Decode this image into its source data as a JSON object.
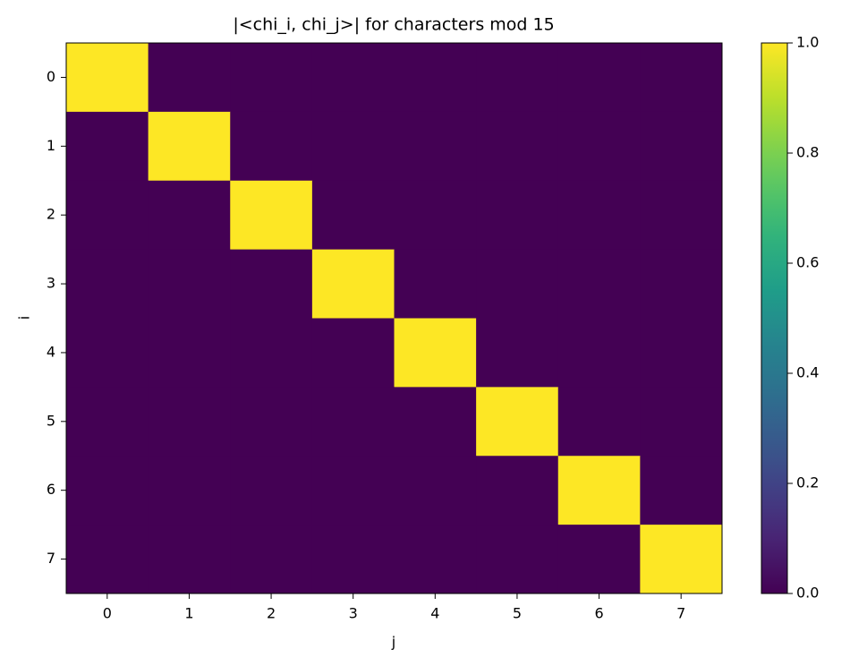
{
  "chart_data": {
    "type": "heatmap",
    "title": "|<chi_i, chi_j>| for characters mod 15",
    "xlabel": "j",
    "ylabel": "i",
    "x": [
      0,
      1,
      2,
      3,
      4,
      5,
      6,
      7
    ],
    "y": [
      0,
      1,
      2,
      3,
      4,
      5,
      6,
      7
    ],
    "xlim": [
      -0.5,
      7.5
    ],
    "ylim": [
      7.5,
      -0.5
    ],
    "xticks": [
      0,
      1,
      2,
      3,
      4,
      5,
      6,
      7
    ],
    "yticks": [
      0,
      1,
      2,
      3,
      4,
      5,
      6,
      7
    ],
    "values": [
      [
        1,
        0,
        0,
        0,
        0,
        0,
        0,
        0
      ],
      [
        0,
        1,
        0,
        0,
        0,
        0,
        0,
        0
      ],
      [
        0,
        0,
        1,
        0,
        0,
        0,
        0,
        0
      ],
      [
        0,
        0,
        0,
        1,
        0,
        0,
        0,
        0
      ],
      [
        0,
        0,
        0,
        0,
        1,
        0,
        0,
        0
      ],
      [
        0,
        0,
        0,
        0,
        0,
        1,
        0,
        0
      ],
      [
        0,
        0,
        0,
        0,
        0,
        0,
        1,
        0
      ],
      [
        0,
        0,
        0,
        0,
        0,
        0,
        0,
        1
      ]
    ],
    "colormap": "viridis",
    "clim": [
      0,
      1
    ],
    "cticks": [
      {
        "value": 0,
        "label": "0.0"
      },
      0.2,
      0.4,
      0.6,
      0.8,
      {
        "value": 1,
        "label": "1.0"
      }
    ]
  }
}
